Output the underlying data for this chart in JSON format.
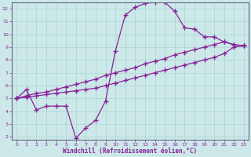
{
  "xlabel": "Windchill (Refroidissement éolien,°C)",
  "bg_color": "#cce8e8",
  "line_color": "#882299",
  "grid_color": "#aad4d4",
  "xlim": [
    -0.5,
    23.5
  ],
  "ylim": [
    1.8,
    12.5
  ],
  "xticks": [
    0,
    1,
    2,
    3,
    4,
    5,
    6,
    7,
    8,
    9,
    10,
    11,
    12,
    13,
    14,
    15,
    16,
    17,
    18,
    19,
    20,
    21,
    22,
    23
  ],
  "yticks": [
    2,
    3,
    4,
    5,
    6,
    7,
    8,
    9,
    10,
    11,
    12
  ],
  "curve1_x": [
    0,
    1,
    2,
    3,
    4,
    5,
    6,
    7,
    8,
    9,
    10,
    11,
    12,
    13,
    14,
    15,
    16,
    17,
    18,
    19,
    20,
    21,
    22,
    23
  ],
  "curve1_y": [
    5.0,
    5.7,
    4.1,
    4.4,
    4.4,
    4.4,
    1.9,
    2.7,
    3.3,
    4.8,
    8.7,
    11.5,
    12.1,
    12.4,
    12.5,
    12.5,
    11.8,
    10.5,
    10.4,
    9.8,
    9.8,
    9.4,
    9.2,
    9.1
  ],
  "curve2_x": [
    0,
    1,
    2,
    3,
    4,
    5,
    6,
    7,
    8,
    9,
    10,
    11,
    12,
    13,
    14,
    15,
    16,
    17,
    18,
    19,
    20,
    21,
    22,
    23
  ],
  "curve2_y": [
    5.0,
    5.2,
    5.4,
    5.5,
    5.7,
    5.9,
    6.1,
    6.3,
    6.5,
    6.8,
    7.0,
    7.2,
    7.4,
    7.7,
    7.9,
    8.1,
    8.4,
    8.6,
    8.8,
    9.0,
    9.2,
    9.4,
    9.2,
    9.1
  ],
  "curve3_x": [
    0,
    1,
    2,
    3,
    4,
    5,
    6,
    7,
    8,
    9,
    10,
    11,
    12,
    13,
    14,
    15,
    16,
    17,
    18,
    19,
    20,
    21,
    22,
    23
  ],
  "curve3_y": [
    5.0,
    5.1,
    5.2,
    5.3,
    5.4,
    5.5,
    5.6,
    5.7,
    5.8,
    6.0,
    6.2,
    6.4,
    6.6,
    6.8,
    7.0,
    7.2,
    7.4,
    7.6,
    7.8,
    8.0,
    8.2,
    8.5,
    9.0,
    9.1
  ]
}
